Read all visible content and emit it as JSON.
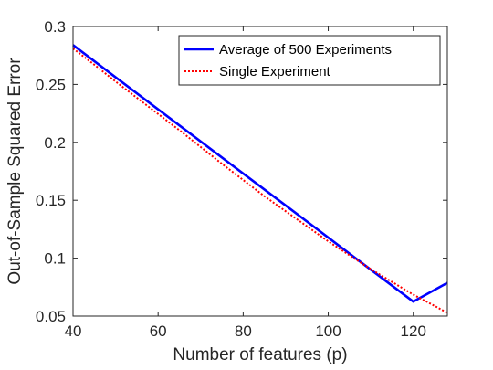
{
  "chart_data": {
    "type": "line",
    "xlabel": "Number of features (p)",
    "ylabel": "Out-of-Sample Squared Error",
    "xlim": [
      40,
      128
    ],
    "ylim": [
      0.05,
      0.3
    ],
    "x_ticks": [
      40,
      60,
      80,
      100,
      120
    ],
    "x_tick_labels": [
      "40",
      "60",
      "80",
      "100",
      "120"
    ],
    "y_ticks": [
      0.05,
      0.1,
      0.15,
      0.2,
      0.25,
      0.3
    ],
    "y_tick_labels": [
      "0.05",
      "0.1",
      "0.15",
      "0.2",
      "0.25",
      "0.3"
    ],
    "grid": false,
    "legend_position": "top-right",
    "series": [
      {
        "name": "Average of 500 Experiments",
        "color": "#0000ff",
        "style": "solid",
        "x": [
          40,
          50,
          60,
          70,
          80,
          90,
          100,
          110,
          120,
          128
        ],
        "y": [
          0.284,
          0.2562,
          0.2285,
          0.2008,
          0.1731,
          0.1455,
          0.1178,
          0.0901,
          0.0625,
          0.0787
        ]
      },
      {
        "name": "Single Experiment",
        "color": "#ff0000",
        "style": "dotted",
        "x": [
          40,
          45,
          50,
          55,
          60,
          65,
          70,
          75,
          80,
          85,
          90,
          95,
          100,
          105,
          110,
          115,
          120,
          125,
          128
        ],
        "y": [
          0.281,
          0.267,
          0.2525,
          0.2385,
          0.2245,
          0.2105,
          0.196,
          0.1815,
          0.1675,
          0.1535,
          0.1405,
          0.1275,
          0.1145,
          0.1025,
          0.0905,
          0.0795,
          0.0685,
          0.0588,
          0.0528
        ]
      }
    ]
  }
}
